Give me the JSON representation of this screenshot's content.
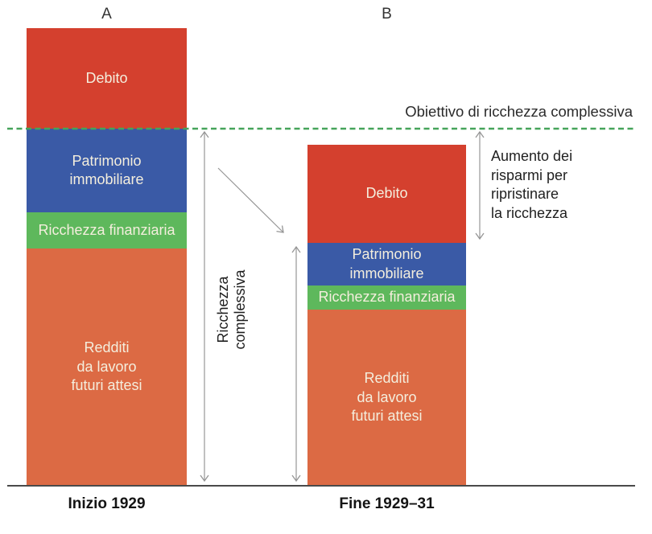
{
  "figure": {
    "column_labels": [
      "A",
      "B"
    ],
    "target_line": {
      "label": "Obiettivo di ricchezza complessiva"
    },
    "annotations": {
      "total_wealth": "Ricchezza\ncomplessiva",
      "savings_note": "Aumento dei\nrisparmi per\nripristinare\nla ricchezza"
    },
    "colors": {
      "debito": "#d4402e",
      "patrimonio_immobiliare": "#3a5aa6",
      "ricchezza_finanziaria": "#5eb85c",
      "redditi": "#dc6a44",
      "target_line": "#45a45a",
      "arrow": "#969696",
      "axis": "#4a4a4a",
      "segment_text": "#f4eedd",
      "dark_text": "#1f1f1f"
    }
  },
  "chart_data": {
    "type": "bar",
    "subtype": "stacked schematic bars, no numeric axis",
    "title": "",
    "xlabel": "",
    "ylabel": "",
    "categories": [
      "Inizio 1929",
      "Fine 1929–31"
    ],
    "units": "schematic height in px (values read from figure geometry)",
    "stack_order_top_down": [
      "Debito",
      "Patrimonio immobiliare",
      "Ricchezza finanziaria",
      "Redditi da lavoro futuri attesi"
    ],
    "series": [
      {
        "name": "Debito",
        "key": "debito",
        "display_label": "Debito",
        "color": "#d4402e",
        "values": [
          125,
          122
        ]
      },
      {
        "name": "Patrimonio immobiliare",
        "key": "patrimonio-immobiliare",
        "display_label": "Patrimonio\nimmobiliare",
        "color": "#3a5aa6",
        "values": [
          104,
          53
        ]
      },
      {
        "name": "Ricchezza finanziaria",
        "key": "ricchezza-finanziaria",
        "display_label": "Ricchezza finanziaria",
        "color": "#5eb85c",
        "values": [
          45,
          30
        ]
      },
      {
        "name": "Redditi da lavoro futuri attesi",
        "key": "redditi-da-lavoro-futuri-attesi",
        "display_label": "Redditi\nda lavoro\nfuturi attesi",
        "color": "#dc6a44",
        "values": [
          295,
          219
        ]
      }
    ],
    "target_line": {
      "label": "Obiettivo di ricchezza complessiva",
      "height_above_baseline": 444,
      "style": "dashed",
      "color": "#45a45a"
    },
    "annotations": [
      {
        "text": "Ricchezza complessiva",
        "meaning": "double-headed arrows spanning total wealth of each bar"
      },
      {
        "text": "Aumento dei risparmi per ripristinare la ricchezza",
        "meaning": "double-headed arrow from target line to top of bar B wealth"
      }
    ],
    "legend": "none (labels written inside segments)"
  }
}
